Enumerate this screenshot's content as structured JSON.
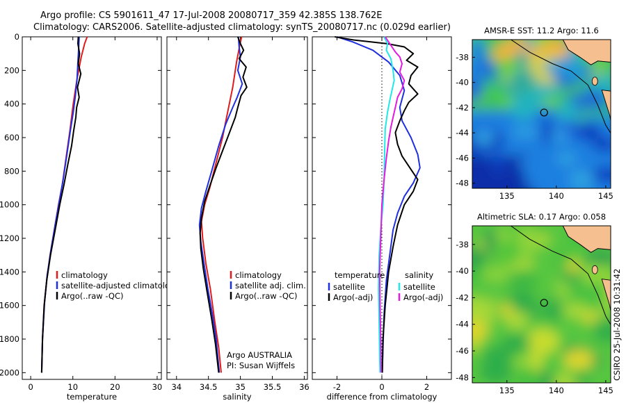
{
  "header": {
    "line1": "Argo profile: CS 5901611_47 17-Jul-2008 20080717_359 42.385S 138.762E",
    "line2": "Climatology: CARS2006. Satellite-adjusted climatology: synTS_20080717.nc (0.029d earlier)"
  },
  "side_stamp": "CSIRO 25-Jul-2008 10:31:42",
  "colors": {
    "clim": "#e01b1b",
    "sat": "#1f2fe0",
    "argo": "#000000",
    "sat_sal": "#1fe8e8",
    "argo_sal": "#e21be0",
    "land": "#f6bf90"
  },
  "chart_data": [
    {
      "type": "line",
      "id": "temperature",
      "xlabel": "temperature",
      "ylabel": "",
      "xlim": [
        -2,
        31
      ],
      "ylim": [
        2040,
        0
      ],
      "y_reversed": true,
      "xticks": [
        0,
        10,
        20,
        30
      ],
      "yticks": [
        0,
        200,
        400,
        600,
        800,
        1000,
        1200,
        1400,
        1600,
        1800,
        2000
      ],
      "legend": {
        "placement": "bottom-right",
        "entries": [
          "climatology",
          "satellite-adjusted climatology",
          "Argo(..raw -QC)"
        ]
      },
      "series": [
        {
          "name": "climatology",
          "color": "#e01b1b",
          "points": [
            [
              13.4,
              0
            ],
            [
              12.8,
              40
            ],
            [
              12,
              120
            ],
            [
              11,
              250
            ],
            [
              10.1,
              400
            ],
            [
              9.3,
              560
            ],
            [
              8.4,
              720
            ],
            [
              7.5,
              880
            ],
            [
              6.6,
              1000
            ],
            [
              5.6,
              1150
            ],
            [
              4.6,
              1300
            ],
            [
              3.8,
              1450
            ],
            [
              3.2,
              1600
            ],
            [
              2.8,
              1800
            ],
            [
              2.6,
              2000
            ]
          ]
        },
        {
          "name": "satellite-adjusted climatology",
          "color": "#1f2fe0",
          "points": [
            [
              11.5,
              0
            ],
            [
              11.4,
              60
            ],
            [
              11.2,
              150
            ],
            [
              11,
              250
            ],
            [
              10.6,
              350
            ],
            [
              10.1,
              450
            ],
            [
              9.4,
              560
            ],
            [
              8.6,
              700
            ],
            [
              7.7,
              850
            ],
            [
              6.8,
              980
            ],
            [
              5.8,
              1120
            ],
            [
              4.8,
              1270
            ],
            [
              3.9,
              1420
            ],
            [
              3.3,
              1580
            ],
            [
              2.8,
              1800
            ],
            [
              2.6,
              2000
            ]
          ]
        },
        {
          "name": "Argo(..raw -QC)",
          "color": "#000000",
          "points": [
            [
              11.3,
              0
            ],
            [
              11.2,
              40
            ],
            [
              11.6,
              100
            ],
            [
              11.3,
              160
            ],
            [
              11.9,
              220
            ],
            [
              11.1,
              300
            ],
            [
              11.5,
              360
            ],
            [
              10.9,
              420
            ],
            [
              10.7,
              480
            ],
            [
              10.2,
              560
            ],
            [
              9.7,
              650
            ],
            [
              8.8,
              760
            ],
            [
              7.9,
              880
            ],
            [
              6.9,
              1000
            ],
            [
              5.8,
              1150
            ],
            [
              4.7,
              1300
            ],
            [
              3.8,
              1450
            ],
            [
              3.2,
              1600
            ],
            [
              2.8,
              1800
            ],
            [
              2.6,
              2000
            ]
          ]
        }
      ]
    },
    {
      "type": "line",
      "id": "salinity",
      "xlabel": "salinity",
      "ylabel": "",
      "xlim": [
        33.85,
        36.05
      ],
      "ylim": [
        2040,
        0
      ],
      "y_reversed": true,
      "xticks": [
        34,
        34.5,
        35,
        35.5,
        36
      ],
      "annotation": [
        "Argo AUSTRALIA",
        "PI: Susan Wijffels"
      ],
      "legend": {
        "placement": "bottom-right",
        "entries": [
          "climatology",
          "satellite adj. clim.",
          "Argo(..raw -QC)"
        ]
      },
      "series": [
        {
          "name": "climatology",
          "color": "#e01b1b",
          "points": [
            [
              35.02,
              0
            ],
            [
              34.99,
              50
            ],
            [
              34.94,
              150
            ],
            [
              34.88,
              300
            ],
            [
              34.8,
              450
            ],
            [
              34.72,
              600
            ],
            [
              34.62,
              750
            ],
            [
              34.52,
              900
            ],
            [
              34.44,
              1000
            ],
            [
              34.39,
              1100
            ],
            [
              34.41,
              1200
            ],
            [
              34.46,
              1350
            ],
            [
              34.53,
              1500
            ],
            [
              34.6,
              1700
            ],
            [
              34.66,
              1850
            ],
            [
              34.7,
              2000
            ]
          ]
        },
        {
          "name": "satellite adj. clim.",
          "color": "#1f2fe0",
          "points": [
            [
              34.97,
              0
            ],
            [
              34.98,
              60
            ],
            [
              35,
              120
            ],
            [
              34.96,
              200
            ],
            [
              35.03,
              280
            ],
            [
              34.95,
              360
            ],
            [
              34.88,
              420
            ],
            [
              34.77,
              520
            ],
            [
              34.66,
              650
            ],
            [
              34.55,
              800
            ],
            [
              34.46,
              920
            ],
            [
              34.39,
              1020
            ],
            [
              34.36,
              1120
            ],
            [
              34.38,
              1220
            ],
            [
              34.43,
              1350
            ],
            [
              34.49,
              1500
            ],
            [
              34.56,
              1650
            ],
            [
              34.62,
              1800
            ],
            [
              34.67,
              2000
            ]
          ]
        },
        {
          "name": "Argo(..raw -QC)",
          "color": "#000000",
          "points": [
            [
              34.96,
              0
            ],
            [
              35,
              40
            ],
            [
              35.05,
              80
            ],
            [
              34.98,
              130
            ],
            [
              35.09,
              180
            ],
            [
              35.04,
              240
            ],
            [
              35.1,
              300
            ],
            [
              35.01,
              350
            ],
            [
              34.96,
              420
            ],
            [
              34.92,
              480
            ],
            [
              34.84,
              560
            ],
            [
              34.74,
              660
            ],
            [
              34.62,
              780
            ],
            [
              34.52,
              890
            ],
            [
              34.44,
              980
            ],
            [
              34.39,
              1080
            ],
            [
              34.37,
              1170
            ],
            [
              34.38,
              1260
            ],
            [
              34.42,
              1380
            ],
            [
              34.48,
              1520
            ],
            [
              34.55,
              1680
            ],
            [
              34.61,
              1830
            ],
            [
              34.66,
              2000
            ]
          ]
        }
      ]
    },
    {
      "type": "line",
      "id": "difference",
      "xlabel": "difference from climatology",
      "ylabel": "",
      "xlim": [
        -3.1,
        3.1
      ],
      "ylim": [
        2040,
        0
      ],
      "y_reversed": true,
      "xticks": [
        -2,
        0,
        2
      ],
      "zero_line": true,
      "legend": {
        "placement": "bottom-center",
        "columns": [
          {
            "title": "temperature",
            "entries": [
              "satellite",
              "Argo(-adj)"
            ]
          },
          {
            "title": "salinity",
            "entries": [
              "satellite",
              "Argo(-adj)"
            ]
          }
        ]
      },
      "series": [
        {
          "name": "temperature satellite",
          "color": "#1f2fe0",
          "points": [
            [
              -2,
              0
            ],
            [
              -1.3,
              30
            ],
            [
              -0.4,
              80
            ],
            [
              0.3,
              150
            ],
            [
              0.8,
              230
            ],
            [
              1,
              320
            ],
            [
              0.8,
              420
            ],
            [
              0.9,
              500
            ],
            [
              1.3,
              600
            ],
            [
              1.6,
              700
            ],
            [
              1.7,
              780
            ],
            [
              1.4,
              870
            ],
            [
              1,
              950
            ],
            [
              0.7,
              1050
            ],
            [
              0.5,
              1150
            ],
            [
              0.35,
              1300
            ],
            [
              0.2,
              1450
            ],
            [
              0.1,
              1650
            ],
            [
              0.05,
              1850
            ],
            [
              0.02,
              2000
            ]
          ]
        },
        {
          "name": "temperature Argo(-adj)",
          "color": "#000000",
          "points": [
            [
              -2.1,
              0
            ],
            [
              -1.2,
              20
            ],
            [
              0.2,
              40
            ],
            [
              1,
              60
            ],
            [
              1.4,
              100
            ],
            [
              1.1,
              140
            ],
            [
              1.6,
              180
            ],
            [
              1.3,
              230
            ],
            [
              1.2,
              280
            ],
            [
              1.6,
              340
            ],
            [
              1.2,
              390
            ],
            [
              1,
              440
            ],
            [
              0.8,
              500
            ],
            [
              0.6,
              570
            ],
            [
              0.7,
              640
            ],
            [
              0.9,
              710
            ],
            [
              1.3,
              790
            ],
            [
              1.6,
              850
            ],
            [
              1.4,
              920
            ],
            [
              1,
              1000
            ],
            [
              0.7,
              1120
            ],
            [
              0.5,
              1250
            ],
            [
              0.3,
              1400
            ],
            [
              0.15,
              1600
            ],
            [
              0.05,
              1800
            ],
            [
              0.02,
              2000
            ]
          ]
        },
        {
          "name": "salinity satellite",
          "color": "#1fe8e8",
          "points": [
            [
              0.1,
              0
            ],
            [
              0.25,
              40
            ],
            [
              0.2,
              80
            ],
            [
              0.4,
              130
            ],
            [
              0.5,
              200
            ],
            [
              0.55,
              260
            ],
            [
              0.45,
              320
            ],
            [
              0.35,
              380
            ],
            [
              0.25,
              450
            ],
            [
              0.15,
              550
            ],
            [
              0.12,
              700
            ],
            [
              0.1,
              850
            ],
            [
              0.05,
              1000
            ],
            [
              -0.05,
              1150
            ],
            [
              -0.12,
              1300
            ],
            [
              -0.15,
              1500
            ],
            [
              -0.12,
              1700
            ],
            [
              -0.1,
              1900
            ],
            [
              -0.08,
              2000
            ]
          ]
        },
        {
          "name": "salinity Argo(-adj)",
          "color": "#e21be0",
          "points": [
            [
              0.15,
              0
            ],
            [
              0.3,
              30
            ],
            [
              0.45,
              60
            ],
            [
              0.6,
              90
            ],
            [
              0.8,
              120
            ],
            [
              0.9,
              160
            ],
            [
              0.8,
              210
            ],
            [
              1,
              260
            ],
            [
              0.9,
              310
            ],
            [
              0.7,
              360
            ],
            [
              0.6,
              420
            ],
            [
              0.5,
              480
            ],
            [
              0.4,
              540
            ],
            [
              0.3,
              620
            ],
            [
              0.2,
              720
            ],
            [
              0.1,
              850
            ],
            [
              0,
              1000
            ],
            [
              -0.05,
              1200
            ],
            [
              -0.1,
              1400
            ],
            [
              -0.08,
              1600
            ],
            [
              -0.05,
              1800
            ],
            [
              -0.03,
              2000
            ]
          ]
        }
      ]
    }
  ],
  "maps": [
    {
      "id": "sst",
      "title": "AMSR-E SST: 11.2 Argo: 11.6",
      "xticks": [
        135,
        140,
        145
      ],
      "yticks": [
        -38,
        -40,
        -42,
        -44,
        -46,
        -48
      ],
      "xlim": [
        131.5,
        145.5
      ],
      "ylim": [
        -48.4,
        -36.6
      ],
      "float_position": [
        138.762,
        -42.385
      ]
    },
    {
      "id": "sla",
      "title": "Altimetric SLA: 0.17 Argo: 0.058",
      "xticks": [
        135,
        140,
        145
      ],
      "yticks": [
        -38,
        -40,
        -42,
        -44,
        -46,
        -48
      ],
      "xlim": [
        131.5,
        145.5
      ],
      "ylim": [
        -48.4,
        -36.6
      ],
      "float_position": [
        138.762,
        -42.385
      ]
    }
  ]
}
